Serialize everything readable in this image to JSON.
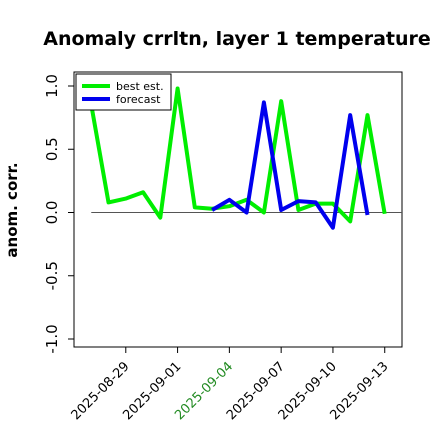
{
  "chart_data": {
    "type": "line",
    "title": "Anomaly crrltn, layer 1 temperature",
    "xlabel": "",
    "ylabel": "anom. corr.",
    "ylim": [
      -1.0,
      1.0
    ],
    "yticks": [
      -1.0,
      -0.5,
      0.0,
      0.5,
      1.0
    ],
    "ytick_labels": [
      "-1.0",
      "-0.5",
      "0.0",
      "0.5",
      "1.0"
    ],
    "xtick_labels": [
      "2025-08-29",
      "2025-09-01",
      "2025-09-04",
      "2025-09-07",
      "2025-09-10",
      "2025-09-13"
    ],
    "xtick_highlight": "2025-09-04",
    "x": [
      "2025-08-27",
      "2025-08-28",
      "2025-08-29",
      "2025-08-30",
      "2025-08-31",
      "2025-09-01",
      "2025-09-02",
      "2025-09-03",
      "2025-09-04",
      "2025-09-05",
      "2025-09-06",
      "2025-09-07",
      "2025-09-08",
      "2025-09-09",
      "2025-09-10",
      "2025-09-11",
      "2025-09-12",
      "2025-09-13"
    ],
    "xlim": [
      "2025-08-26",
      "2025-09-14"
    ],
    "zero_line": {
      "from": "2025-08-27",
      "to": "2025-09-14",
      "value": 0.0
    },
    "grid": false,
    "legend_position": "top-left",
    "series": [
      {
        "name": "best est.",
        "color": "#00ee00",
        "values": [
          0.85,
          0.08,
          0.11,
          0.16,
          -0.04,
          0.98,
          0.04,
          0.03,
          0.05,
          0.1,
          0.0,
          0.88,
          0.02,
          0.07,
          0.07,
          -0.07,
          0.77,
          -0.01
        ]
      },
      {
        "name": "forecast",
        "color": "#0000ee",
        "values": [
          null,
          null,
          null,
          null,
          null,
          null,
          null,
          0.02,
          0.1,
          0.0,
          0.87,
          0.02,
          0.09,
          0.08,
          -0.12,
          0.77,
          -0.02,
          null
        ]
      }
    ]
  }
}
